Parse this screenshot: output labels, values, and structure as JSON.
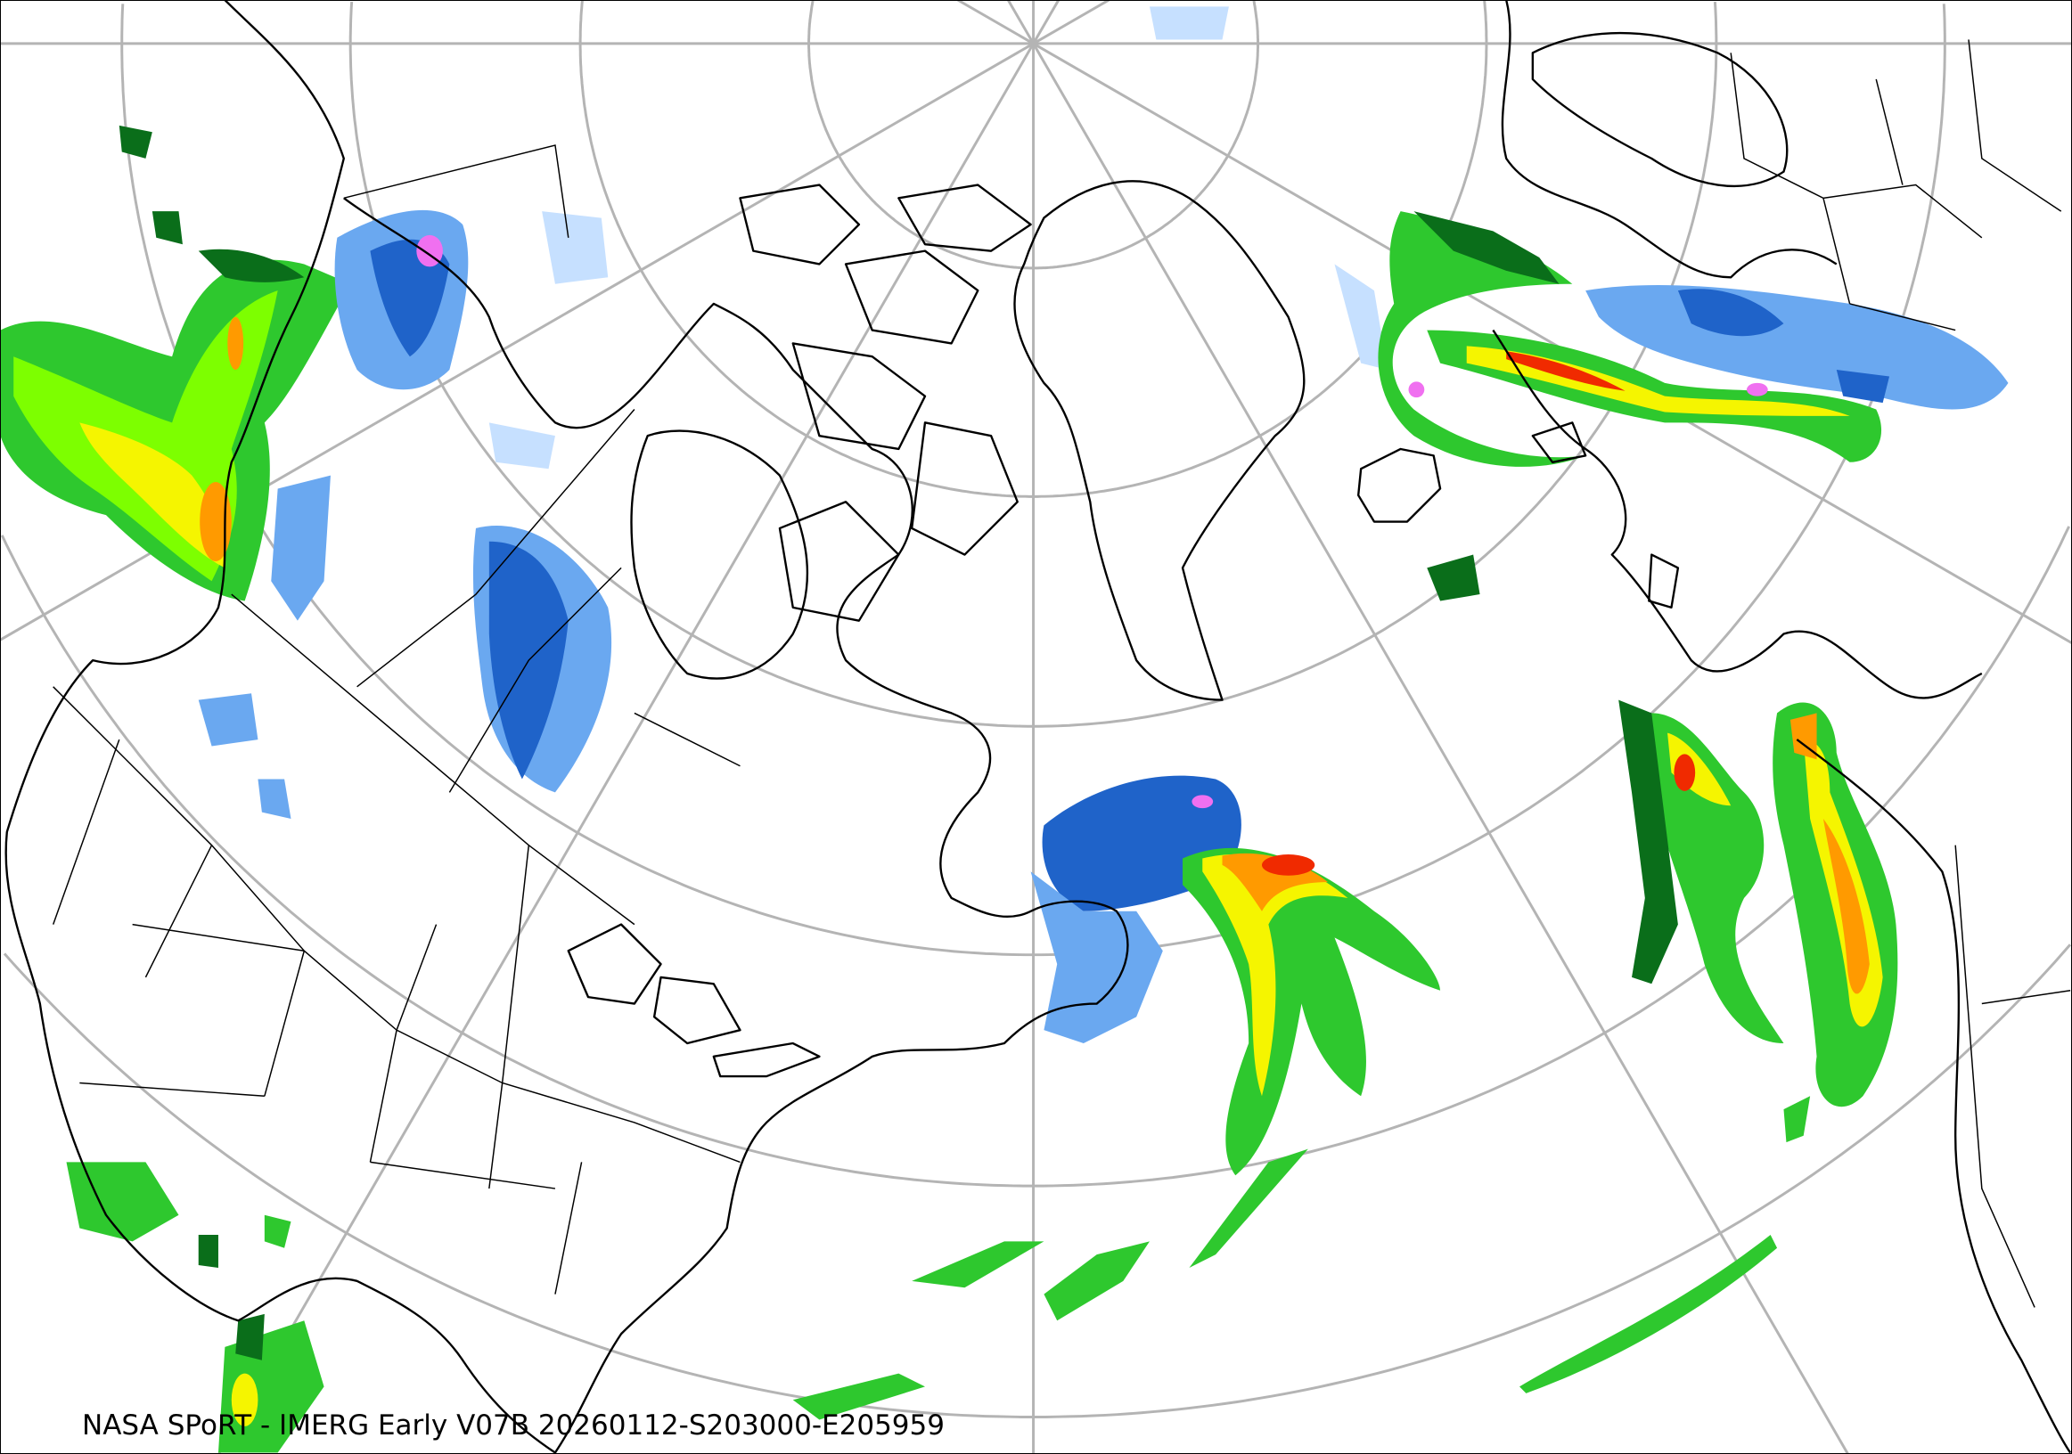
{
  "caption": "NASA SPoRT - IMERG Early V07B 20260112-S203000-E205959",
  "precip_colors": {
    "very_light": "#c6e0ff",
    "light": "#6aa8f0",
    "moderate_blue": "#1f63c9",
    "dark_green": "#0a6e1a",
    "green": "#2ec82e",
    "bright_green": "#7dff00",
    "yellow": "#f5f500",
    "orange": "#ff9a00",
    "red": "#f02a00",
    "magenta": "#f070f0"
  },
  "graticule_color": "#b4b4b4",
  "coastline_color": "#000000"
}
